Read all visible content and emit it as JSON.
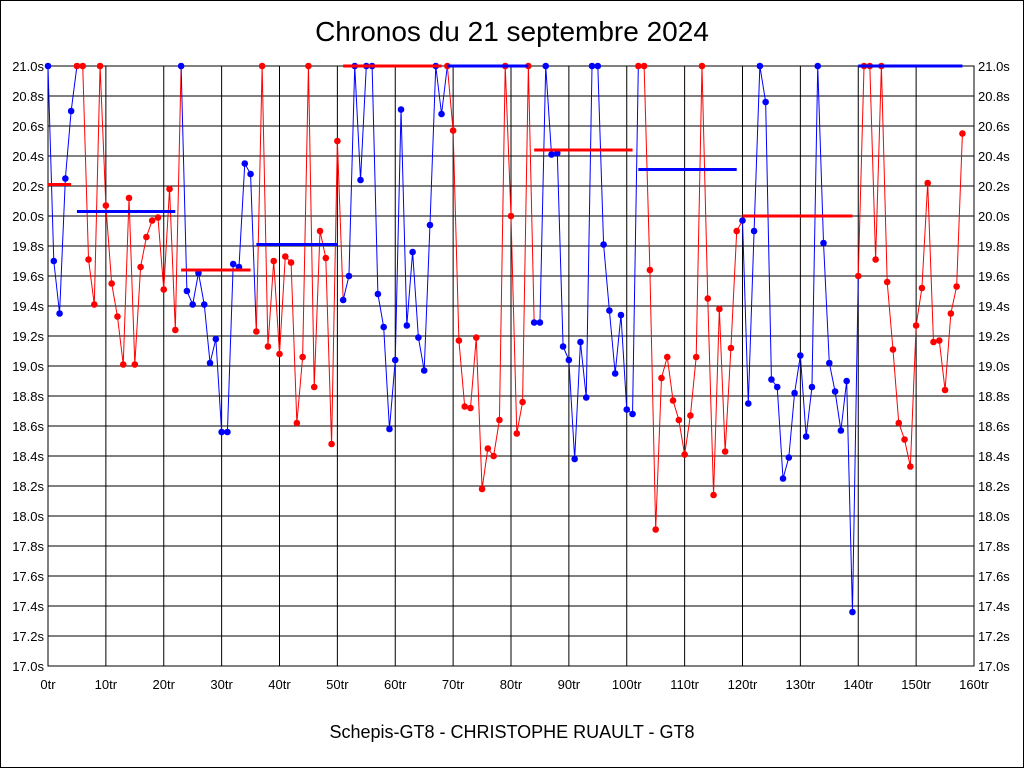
{
  "page": {
    "title": "Chronos du 21 septembre 2024",
    "footer": "Schepis-GT8 - CHRISTOPHE RUAULT - GT8"
  },
  "colors": {
    "red": "#ff0000",
    "blue": "#0000ff",
    "grid": "#000000"
  },
  "chart_data": {
    "type": "line",
    "title": "Chronos du 21 septembre 2024",
    "xlabel": "",
    "ylabel": "",
    "xlim": [
      0,
      160
    ],
    "ylim": [
      17.0,
      21.0
    ],
    "grid": true,
    "legend": "none",
    "x_ticks": [
      "0tr",
      "10tr",
      "20tr",
      "30tr",
      "40tr",
      "50tr",
      "60tr",
      "70tr",
      "80tr",
      "90tr",
      "100tr",
      "110tr",
      "120tr",
      "130tr",
      "140tr",
      "150tr",
      "160tr"
    ],
    "y_ticks": [
      "21.0s",
      "20.8s",
      "20.6s",
      "20.4s",
      "20.2s",
      "20.0s",
      "19.8s",
      "19.6s",
      "19.4s",
      "19.2s",
      "19.0s",
      "18.8s",
      "18.6s",
      "18.4s",
      "18.2s",
      "18.0s",
      "17.8s",
      "17.6s",
      "17.4s",
      "17.2s",
      "17.0s"
    ],
    "stints": [
      {
        "color": "blue",
        "x": [
          0,
          1,
          2,
          3,
          4
        ],
        "y": [
          21.0,
          19.7,
          19.35,
          20.25,
          20.7
        ],
        "mean": null
      },
      {
        "color": "red",
        "x": [
          5,
          6,
          7,
          8,
          9,
          10,
          11,
          12,
          13,
          14,
          15,
          16,
          17,
          18,
          19,
          20,
          21,
          22
        ],
        "y": [
          21.0,
          21.0,
          19.71,
          19.41,
          21.0,
          20.07,
          19.55,
          19.33,
          19.01,
          20.12,
          19.01,
          19.66,
          19.86,
          19.97,
          19.99,
          19.51,
          20.18,
          19.24
        ],
        "mean": 20.21
      },
      {
        "color": "blue",
        "x": [
          23,
          24,
          25,
          26,
          27,
          28,
          29,
          30,
          31,
          32,
          33,
          34,
          35
        ],
        "y": [
          21.0,
          19.5,
          19.41,
          19.62,
          19.41,
          19.02,
          19.18,
          18.56,
          18.56,
          19.68,
          19.66,
          20.35,
          20.28
        ],
        "mean": 20.03
      },
      {
        "color": "red",
        "x": [
          36,
          37,
          38,
          39,
          40,
          41,
          42,
          43,
          44,
          45,
          46,
          47,
          48,
          49,
          50
        ],
        "y": [
          19.23,
          21.0,
          19.13,
          19.7,
          19.08,
          19.73,
          19.69,
          18.62,
          19.06,
          21.0,
          18.86,
          19.9,
          19.72,
          18.48,
          20.5
        ],
        "mean": 19.64
      },
      {
        "color": "blue",
        "x": [
          51,
          52,
          53,
          54,
          55,
          56,
          57,
          58,
          59,
          60,
          61,
          62,
          63,
          64,
          65,
          66,
          67,
          68
        ],
        "y": [
          19.44,
          19.6,
          21.0,
          20.24,
          21.0,
          21.0,
          19.48,
          19.26,
          18.58,
          19.04,
          20.71,
          19.27,
          19.76,
          19.19,
          18.97,
          19.94,
          21.0,
          20.68
        ],
        "mean": 19.81
      },
      {
        "color": "red",
        "x": [
          69,
          70,
          71,
          72,
          73,
          74,
          75,
          76,
          77,
          78,
          79,
          80,
          81,
          82,
          83
        ],
        "y": [
          21.0,
          20.57,
          19.17,
          18.73,
          18.72,
          19.19,
          18.18,
          18.45,
          18.4,
          18.64,
          21.0,
          20.0,
          18.55,
          18.76,
          21.0
        ],
        "mean": 21.0
      },
      {
        "color": "blue",
        "x": [
          84,
          85,
          86,
          87,
          88,
          89,
          90,
          91,
          92,
          93,
          94,
          95,
          96,
          97,
          98,
          99,
          100,
          101
        ],
        "y": [
          19.29,
          19.29,
          21.0,
          20.41,
          20.42,
          19.13,
          19.04,
          18.38,
          19.16,
          18.79,
          21.0,
          21.0,
          19.81,
          19.37,
          18.95,
          19.34,
          18.71,
          18.68
        ],
        "mean": 21.0
      },
      {
        "color": "red",
        "x": [
          102,
          103,
          104,
          105,
          106,
          107,
          108,
          109,
          110,
          111,
          112,
          113,
          114,
          115,
          116,
          117,
          118,
          119
        ],
        "y": [
          21.0,
          21.0,
          19.64,
          17.91,
          18.92,
          19.06,
          18.77,
          18.64,
          18.41,
          18.67,
          19.06,
          21.0,
          19.45,
          18.14,
          19.38,
          18.43,
          19.12,
          19.9
        ],
        "mean": 20.44
      },
      {
        "color": "blue",
        "x": [
          120,
          121,
          122,
          123,
          124,
          125,
          126,
          127,
          128,
          129,
          130,
          131,
          132,
          133,
          134,
          135,
          136,
          137,
          138,
          139
        ],
        "y": [
          19.97,
          18.75,
          19.9,
          21.0,
          20.76,
          18.91,
          18.86,
          18.25,
          18.39,
          18.82,
          19.07,
          18.53,
          18.86,
          21.0,
          19.82,
          19.02,
          18.83,
          18.57,
          18.9,
          17.36
        ],
        "mean": 20.31
      },
      {
        "color": "red",
        "x": [
          140,
          141,
          142,
          143,
          144,
          145,
          146,
          147,
          148,
          149,
          150,
          151,
          152,
          153,
          154,
          155,
          156,
          157,
          158
        ],
        "y": [
          19.6,
          21.0,
          21.0,
          19.71,
          21.0,
          19.56,
          19.11,
          18.62,
          18.51,
          18.33,
          19.27,
          19.52,
          20.22,
          19.16,
          19.17,
          18.84,
          19.35,
          19.53,
          20.55
        ],
        "mean": 20.0
      }
    ],
    "mean_segments": [
      {
        "color": "red",
        "x": [
          0,
          4
        ],
        "y": 20.21
      },
      {
        "color": "blue",
        "x": [
          5,
          22
        ],
        "y": 20.03
      },
      {
        "color": "red",
        "x": [
          23,
          35
        ],
        "y": 19.64
      },
      {
        "color": "blue",
        "x": [
          36,
          50
        ],
        "y": 19.81
      },
      {
        "color": "red",
        "x": [
          51,
          68
        ],
        "y": 21.0
      },
      {
        "color": "blue",
        "x": [
          69,
          83
        ],
        "y": 21.0
      },
      {
        "color": "red",
        "x": [
          84,
          101
        ],
        "y": 20.44
      },
      {
        "color": "blue",
        "x": [
          102,
          119
        ],
        "y": 20.31
      },
      {
        "color": "red",
        "x": [
          120,
          139
        ],
        "y": 20.0
      },
      {
        "color": "blue",
        "x": [
          140,
          158
        ],
        "y": 21.0
      }
    ]
  }
}
